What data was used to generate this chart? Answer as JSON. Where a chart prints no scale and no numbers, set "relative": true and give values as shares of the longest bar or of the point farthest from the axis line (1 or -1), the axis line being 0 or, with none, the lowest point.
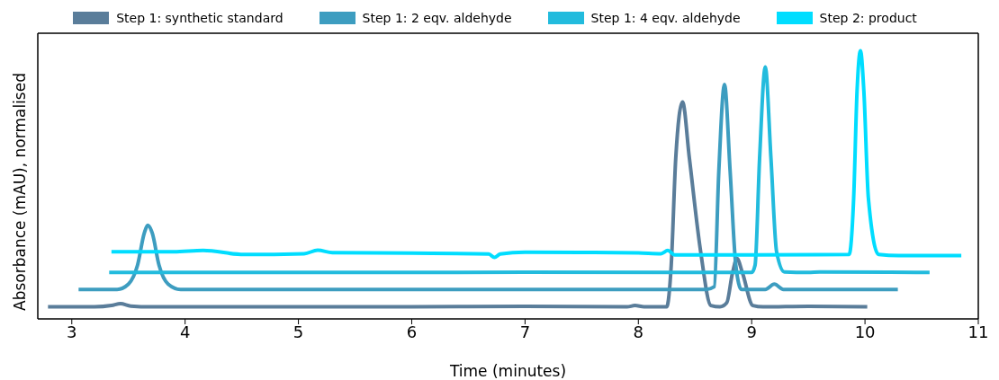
{
  "chart_data": {
    "type": "line",
    "xlabel": "Time (minutes)",
    "ylabel": "Absorbance (mAU), normalised",
    "relative": true,
    "xlim": [
      2.7,
      11
    ],
    "xticks": [
      3,
      4,
      5,
      6,
      7,
      8,
      9,
      10,
      11
    ],
    "grid": false,
    "legend": "top",
    "marker": "none",
    "line_style": "solid",
    "series": [
      {
        "name": "Step 1: synthetic standard",
        "color": "#5a7d9a",
        "x": [
          2.79,
          3.2,
          3.35,
          3.43,
          3.52,
          3.7,
          5,
          6,
          7,
          7.9,
          7.97,
          8.05,
          8.25,
          8.29,
          8.33,
          8.39,
          8.45,
          8.55,
          8.64,
          8.72,
          8.78,
          8.83,
          8.87,
          8.92,
          9.01,
          9.1,
          9.5,
          10.02
        ],
        "values": [
          0.045,
          0.045,
          0.05,
          0.057,
          0.048,
          0.045,
          0.045,
          0.045,
          0.047,
          0.045,
          0.05,
          0.045,
          0.045,
          0.2,
          0.6,
          0.809,
          0.6,
          0.25,
          0.05,
          0.045,
          0.06,
          0.17,
          0.225,
          0.17,
          0.05,
          0.045,
          0.047,
          0.045
        ]
      },
      {
        "name": "Step 1: 2 eqv. aldehyde",
        "color": "#3d9dc0",
        "x": [
          3.06,
          3.4,
          3.5,
          3.58,
          3.64,
          3.67,
          3.71,
          3.77,
          3.85,
          3.96,
          5,
          6,
          7,
          8,
          8.6,
          8.67,
          8.71,
          8.76,
          8.81,
          8.86,
          8.91,
          9.0,
          9.12,
          9.2,
          9.28,
          9.5,
          10.29
        ],
        "values": [
          0.11,
          0.11,
          0.13,
          0.2,
          0.32,
          0.349,
          0.32,
          0.2,
          0.13,
          0.11,
          0.11,
          0.11,
          0.11,
          0.11,
          0.11,
          0.12,
          0.55,
          0.874,
          0.55,
          0.2,
          0.11,
          0.11,
          0.11,
          0.13,
          0.11,
          0.11,
          0.11
        ]
      },
      {
        "name": "Step 1: 4 eqv. aldehyde",
        "color": "#22bbdd",
        "x": [
          3.33,
          5,
          7,
          9.0,
          9.03,
          9.07,
          9.12,
          9.17,
          9.22,
          9.29,
          9.5,
          9.6,
          10.57
        ],
        "values": [
          0.173,
          0.173,
          0.174,
          0.173,
          0.2,
          0.6,
          0.939,
          0.6,
          0.25,
          0.175,
          0.173,
          0.175,
          0.173
        ]
      },
      {
        "name": "Step 2: product",
        "color": "#00ddff",
        "x": [
          3.35,
          3.9,
          4.16,
          4.52,
          5.05,
          5.17,
          5.3,
          6,
          6.68,
          6.73,
          6.78,
          7,
          7.5,
          8.0,
          8.2,
          8.26,
          8.32,
          9.0,
          9.86,
          9.9,
          9.93,
          9.96,
          9.99,
          10.03,
          10.12,
          10.3,
          10.85
        ],
        "values": [
          0.25,
          0.25,
          0.255,
          0.24,
          0.243,
          0.256,
          0.247,
          0.245,
          0.242,
          0.229,
          0.242,
          0.249,
          0.248,
          0.246,
          0.243,
          0.255,
          0.239,
          0.239,
          0.24,
          0.45,
          0.85,
          1,
          0.85,
          0.45,
          0.24,
          0.236,
          0.236
        ]
      }
    ]
  }
}
